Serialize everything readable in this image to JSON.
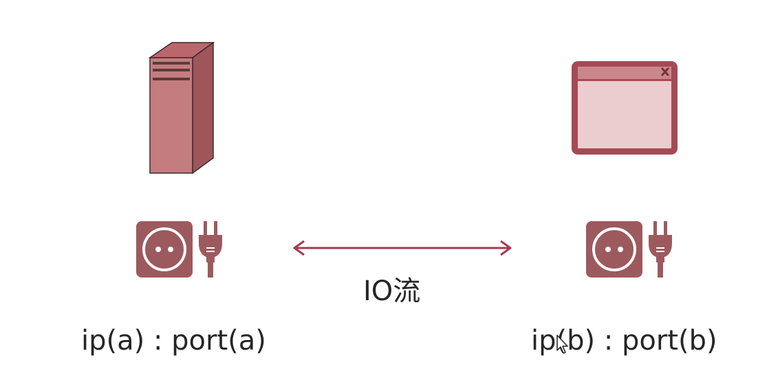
{
  "left_node": {
    "icon": "server-tower-icon",
    "socket_icon": "power-socket-icon",
    "plug_icon": "power-plug-icon",
    "address_label": "ip(a) : port(a)"
  },
  "right_node": {
    "icon": "browser-window-icon",
    "socket_icon": "power-socket-icon",
    "plug_icon": "power-plug-icon",
    "address_label": "ip(b) : port(b)"
  },
  "connection": {
    "arrow": "bidirectional-arrow",
    "label": "IO流"
  },
  "colors": {
    "server_fill": "#c47c7f",
    "server_dark": "#9e565b",
    "socket_fill": "#9c5a5e",
    "window_border": "#a54a55",
    "window_fill": "#ebcdd0",
    "arrow": "#a83850"
  }
}
